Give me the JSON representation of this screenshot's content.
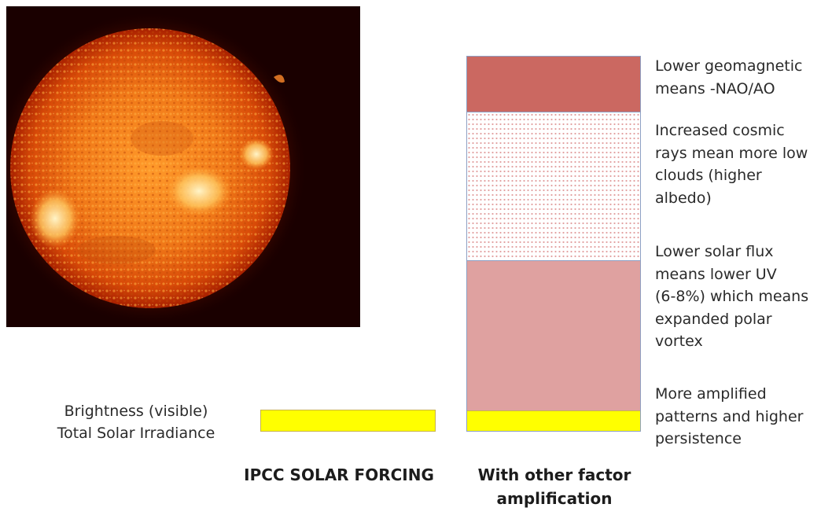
{
  "photo": {
    "subject": "sun-photo",
    "colors": {
      "core": "#ffe8a0",
      "mid": "#f07818",
      "edge": "#8a1800",
      "background": "#1a0000"
    }
  },
  "left_label": {
    "line1": "Brightness (visible)",
    "line2": "Total Solar Irradiance"
  },
  "bars": {
    "ipcc": {
      "color": "#ffff00"
    },
    "stack": [
      {
        "name": "geomagnetic",
        "color": "#cb6861"
      },
      {
        "name": "cosmic-rays",
        "color": "#e2a0a0"
      },
      {
        "name": "uv",
        "color": "#dfa1a0"
      },
      {
        "name": "tsi",
        "color": "#ffff00"
      }
    ]
  },
  "notes": {
    "geomagnetic": [
      "Lower geomagnetic",
      "means -NAO/AO"
    ],
    "cosmic": [
      "Increased cosmic",
      "rays mean more low",
      "clouds (higher",
      "albedo)"
    ],
    "uv": [
      "Lower solar flux",
      "means lower UV",
      "(6-8%) which means",
      "expanded polar",
      "vortex"
    ],
    "amplified": [
      "More amplified",
      "patterns and higher",
      "persistence"
    ]
  },
  "column_labels": {
    "ipcc": "IPCC SOLAR FORCING",
    "other_line1": "With other factor",
    "other_line2": "amplification"
  }
}
